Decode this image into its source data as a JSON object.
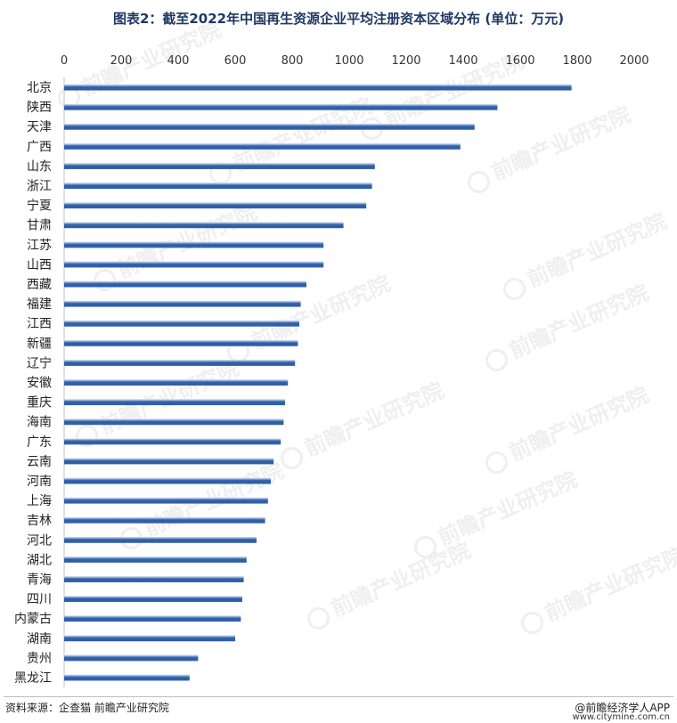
{
  "title": "图表2：截至2022年中国再生资源企业平均注册资本区域分布 (单位：万元)",
  "footer": {
    "source": "资料来源：企查猫 前瞻产业研究院",
    "brand": "@前瞻经济学人APP",
    "site": "www.citymine.com.cn"
  },
  "watermark": "前瞻产业研究院",
  "colors": {
    "bar_dark": "#2f5fa8",
    "bar_light": "#e9f0fa",
    "title": "#1f3864"
  },
  "chart_data": {
    "type": "bar",
    "orientation": "horizontal",
    "categories": [
      "北京",
      "陕西",
      "天津",
      "广西",
      "山东",
      "浙江",
      "宁夏",
      "甘肃",
      "江苏",
      "山西",
      "西藏",
      "福建",
      "江西",
      "新疆",
      "辽宁",
      "安徽",
      "重庆",
      "海南",
      "广东",
      "云南",
      "河南",
      "上海",
      "吉林",
      "河北",
      "湖北",
      "青海",
      "四川",
      "内蒙古",
      "湖南",
      "贵州",
      "黑龙江"
    ],
    "values": [
      1780,
      1520,
      1440,
      1390,
      1090,
      1080,
      1060,
      980,
      910,
      910,
      850,
      830,
      825,
      820,
      810,
      785,
      775,
      770,
      760,
      735,
      725,
      715,
      705,
      675,
      640,
      630,
      625,
      620,
      600,
      470,
      440
    ],
    "xlim": [
      0,
      2000
    ],
    "xticks": [
      "0",
      "200",
      "400",
      "600",
      "800",
      "1000",
      "1200",
      "1400",
      "1600",
      "1800",
      "2000"
    ],
    "xaxis_position": "top",
    "grid": false,
    "legend": "none"
  }
}
